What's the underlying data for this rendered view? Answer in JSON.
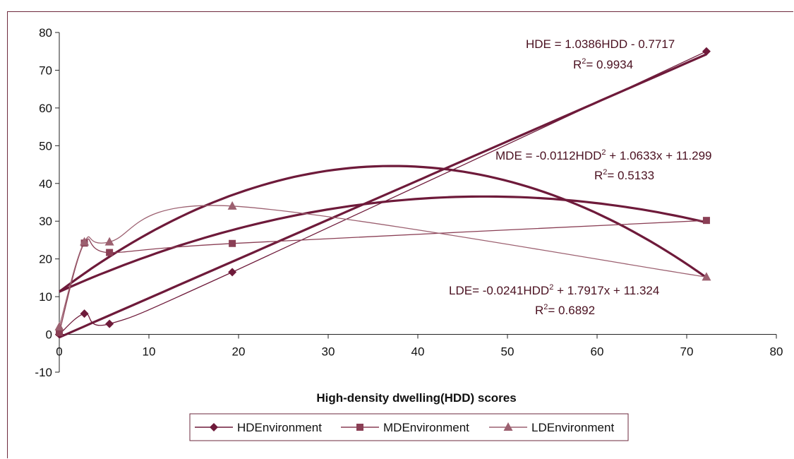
{
  "chart_data": {
    "type": "scatter",
    "title": "",
    "xlabel": "High-density dwelling(HDD) scores",
    "ylabel": "",
    "xlim": [
      0,
      80
    ],
    "ylim": [
      -10,
      80
    ],
    "xticks": [
      0,
      10,
      20,
      30,
      40,
      50,
      60,
      70,
      80
    ],
    "yticks": [
      -10,
      0,
      10,
      20,
      30,
      40,
      50,
      60,
      70,
      80
    ],
    "grid": false,
    "legend_position": "bottom",
    "series": [
      {
        "name": "HDEnvironment",
        "color": "#6e1a3a",
        "marker": "diamond",
        "points": [
          [
            0,
            0
          ],
          [
            2.8,
            5.5
          ],
          [
            5.6,
            2.8
          ],
          [
            19.3,
            16.5
          ],
          [
            72.2,
            75
          ]
        ],
        "trendline": {
          "type": "linear",
          "a": 1.0386,
          "b": -0.7717,
          "equation": "HDE = 1.0386HDD - 0.7717",
          "r2_label": "= 0.9934"
        }
      },
      {
        "name": "MDEnvironment",
        "color": "#8a3f55",
        "marker": "square",
        "points": [
          [
            0,
            0.5
          ],
          [
            2.8,
            24.2
          ],
          [
            5.6,
            21.7
          ],
          [
            19.3,
            24.1
          ],
          [
            72.2,
            30.2
          ]
        ],
        "trendline": {
          "type": "polynomial",
          "a": -0.0112,
          "b": 1.0633,
          "c": 11.299,
          "equation_prefix": "MDE = -0.0112HDD",
          "equation_suffix": " + 1.0633x + 11.299",
          "r2_label": "= 0.5133"
        }
      },
      {
        "name": "LDEnvironment",
        "color": "#9c6070",
        "marker": "triangle",
        "points": [
          [
            0,
            2.0
          ],
          [
            2.8,
            24.5
          ],
          [
            5.6,
            24.5
          ],
          [
            19.3,
            34.0
          ],
          [
            72.2,
            15.2
          ]
        ],
        "trendline": {
          "type": "polynomial",
          "a": -0.0241,
          "b": 1.7917,
          "c": 11.324,
          "equation_prefix": "LDE= -0.0241HDD",
          "equation_suffix": " + 1.7917x + 11.324",
          "r2_label": "= 0.6892"
        }
      }
    ]
  }
}
